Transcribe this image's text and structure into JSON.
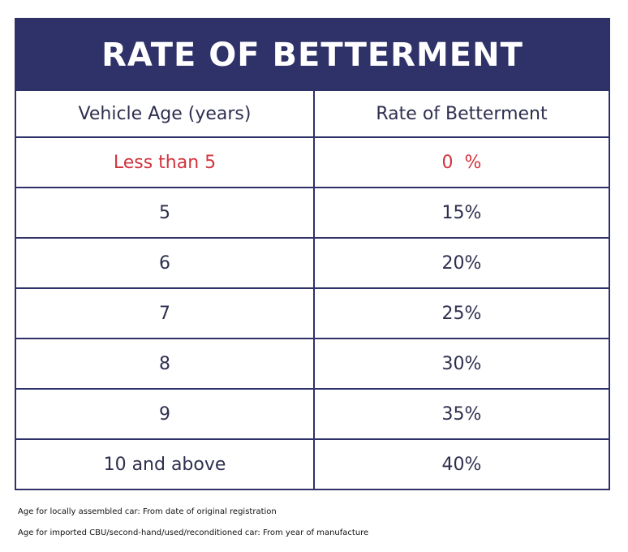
{
  "title": "RATE OF BETTERMENT",
  "table": {
    "headers": [
      "Vehicle Age (years)",
      "Rate of Betterment"
    ],
    "rows": [
      {
        "age": "Less than 5",
        "rate": "0  %",
        "highlight": true
      },
      {
        "age": "5",
        "rate": "15%",
        "highlight": false
      },
      {
        "age": "6",
        "rate": "20%",
        "highlight": false
      },
      {
        "age": "7",
        "rate": "25%",
        "highlight": false
      },
      {
        "age": "8",
        "rate": "30%",
        "highlight": false
      },
      {
        "age": "9",
        "rate": "35%",
        "highlight": false
      },
      {
        "age": "10 and above",
        "rate": "40%",
        "highlight": false
      }
    ]
  },
  "footnotes": [
    "Age for locally assembled car: From date of original registration",
    "Age for imported CBU/second-hand/used/reconditioned car: From year of manufacture"
  ],
  "colors": {
    "header_bg": "#2f3169",
    "header_text": "#ffffff",
    "highlight_text": "#d2343f",
    "body_text": "#2e2f4f"
  }
}
